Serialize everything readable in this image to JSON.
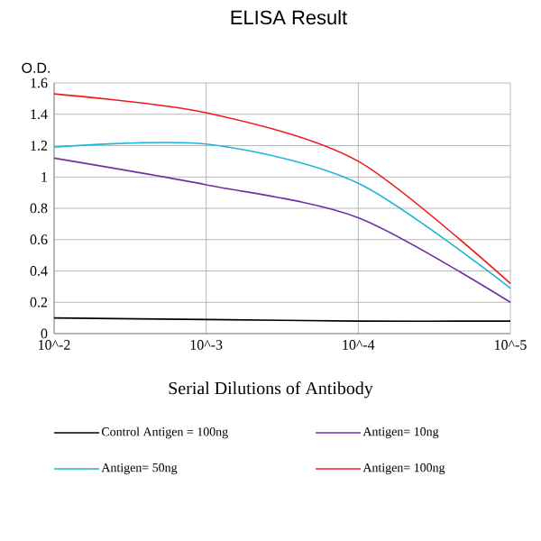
{
  "chart_data": {
    "type": "line",
    "title": "ELISA Result",
    "ylabel": "O.D.",
    "xlabel": "Serial Dilutions of Antibody",
    "categories": [
      "10^-2",
      "10^-3",
      "10^-4",
      "10^-5"
    ],
    "series": [
      {
        "name": "Control Antigen = 100ng",
        "color": "#000000",
        "values": [
          0.1,
          0.09,
          0.08,
          0.08
        ]
      },
      {
        "name": "Antigen= 10ng",
        "color": "#7030a0",
        "values": [
          1.12,
          0.95,
          0.74,
          0.2
        ]
      },
      {
        "name": "Antigen= 50ng",
        "color": "#1fb5d6",
        "values": [
          1.19,
          1.21,
          0.96,
          0.29
        ]
      },
      {
        "name": "Antigen= 100ng",
        "color": "#ee1c1c",
        "values": [
          1.53,
          1.41,
          1.1,
          0.32
        ]
      }
    ],
    "ylim": [
      0,
      1.6
    ],
    "yticks": [
      0,
      0.2,
      0.4,
      0.6,
      0.8,
      1,
      1.2,
      1.4,
      1.6
    ],
    "grid": true,
    "legend": "bottom",
    "marker": "none",
    "line_style": "solid"
  }
}
